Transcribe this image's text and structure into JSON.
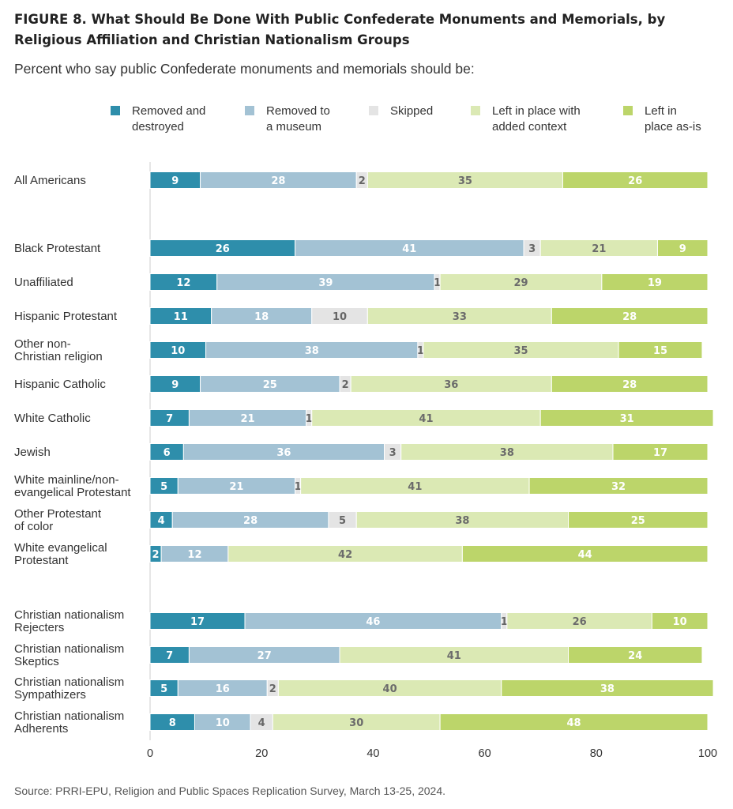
{
  "title": "FIGURE 8.  What Should Be Done With Public Confederate Monuments and Memorials, by Religious Affiliation and Christian Nationalism Groups",
  "subtitle": "Percent who say public Confederate monuments and memorials should be:",
  "source": "Source: PRRI-EPU, Religion and Public Spaces Replication Survey, March 13-25, 2024.",
  "chart_data": {
    "type": "bar",
    "orientation": "horizontal",
    "stacked": true,
    "xlim": [
      0,
      100
    ],
    "xticks": [
      0,
      20,
      40,
      60,
      80,
      100
    ],
    "grid": false,
    "legend_position": "top",
    "categories": [
      {
        "label": [
          "All Americans"
        ],
        "group": 0
      },
      {
        "label": [
          "Black Protestant"
        ],
        "group": 1
      },
      {
        "label": [
          "Unaffiliated"
        ],
        "group": 1
      },
      {
        "label": [
          "Hispanic Protestant"
        ],
        "group": 1
      },
      {
        "label": [
          "Other non-",
          "Christian religion"
        ],
        "group": 1
      },
      {
        "label": [
          "Hispanic Catholic"
        ],
        "group": 1
      },
      {
        "label": [
          "White Catholic"
        ],
        "group": 1
      },
      {
        "label": [
          "Jewish"
        ],
        "group": 1
      },
      {
        "label": [
          "White mainline/non-",
          "evangelical Protestant"
        ],
        "group": 1
      },
      {
        "label": [
          "Other Protestant",
          "of color"
        ],
        "group": 1
      },
      {
        "label": [
          "White evangelical",
          "Protestant"
        ],
        "group": 1
      },
      {
        "label": [
          "Christian nationalism",
          "Rejecters"
        ],
        "group": 2
      },
      {
        "label": [
          "Christian nationalism",
          "Skeptics"
        ],
        "group": 2
      },
      {
        "label": [
          "Christian nationalism",
          "Sympathizers"
        ],
        "group": 2
      },
      {
        "label": [
          "Christian nationalism",
          "Adherents"
        ],
        "group": 2
      }
    ],
    "series": [
      {
        "name": "Removed and destroyed",
        "legend": [
          "Removed and",
          "destroyed"
        ],
        "color": "#2e8eab",
        "text_color": "#ffffff",
        "values": [
          9,
          26,
          12,
          11,
          10,
          9,
          7,
          6,
          5,
          4,
          2,
          17,
          7,
          5,
          8
        ]
      },
      {
        "name": "Removed to a museum",
        "legend": [
          "Removed to",
          "a museum"
        ],
        "color": "#a3c2d4",
        "text_color": "#ffffff",
        "values": [
          28,
          41,
          39,
          18,
          38,
          25,
          21,
          36,
          21,
          28,
          12,
          46,
          27,
          16,
          10
        ]
      },
      {
        "name": "Skipped",
        "legend": [
          "Skipped"
        ],
        "color": "#e4e4e4",
        "text_color": "#666666",
        "values": [
          2,
          3,
          1,
          10,
          1,
          2,
          1,
          3,
          1,
          5,
          0,
          1,
          0,
          2,
          4
        ]
      },
      {
        "name": "Left in place with added context",
        "legend": [
          "Left in place with",
          "added context"
        ],
        "color": "#dbe9b4",
        "text_color": "#6b6b6b",
        "values": [
          35,
          21,
          29,
          33,
          35,
          36,
          41,
          38,
          41,
          38,
          42,
          26,
          41,
          40,
          30
        ]
      },
      {
        "name": "Left in place as-is",
        "legend": [
          "Left in",
          "place as-is"
        ],
        "color": "#bcd56a",
        "text_color": "#ffffff",
        "values": [
          26,
          9,
          19,
          28,
          15,
          28,
          31,
          17,
          32,
          25,
          44,
          10,
          24,
          38,
          48
        ]
      }
    ]
  }
}
